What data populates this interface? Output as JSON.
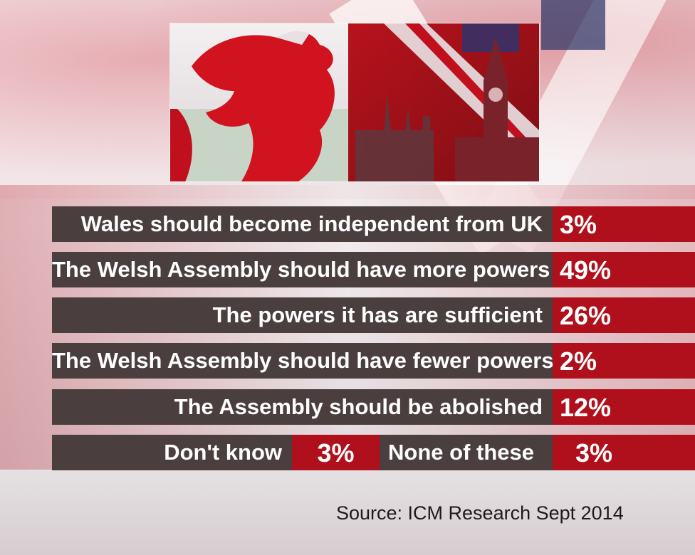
{
  "chart_data": {
    "type": "bar",
    "categories": [
      "Wales should become independent from UK",
      "The Welsh Assembly should have more powers",
      "The powers it has are sufficient",
      "The Welsh Assembly should have fewer powers",
      "The Assembly should be abolished",
      "Don't know",
      "None of these"
    ],
    "values": [
      3,
      49,
      26,
      2,
      12,
      3,
      3
    ],
    "value_labels": [
      "3%",
      "49%",
      "26%",
      "2%",
      "12%",
      "3%",
      "3%"
    ],
    "source": "Source: ICM Research Sept 2014",
    "colors": {
      "label_bg": "#4a3e3f",
      "value_bg": "#b0101b",
      "text": "#ffffff"
    }
  }
}
